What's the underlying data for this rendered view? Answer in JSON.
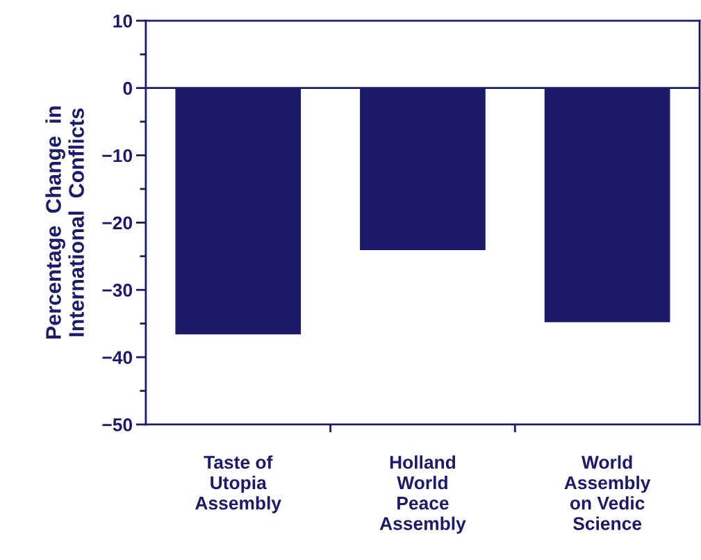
{
  "chart_data": {
    "type": "bar",
    "ylabel": "Percentage  Change  in\nInternational  Conflicts",
    "categories": [
      "Taste of\nUtopia\nAssembly",
      "Holland\nWorld\nPeace\nAssembly",
      "World\nAssembly\non Vedic\nScience"
    ],
    "values": [
      -36.6,
      -24.1,
      -34.8
    ],
    "color": "#1c1a6b",
    "ylim": [
      -50,
      10
    ],
    "yticks": [
      10,
      0,
      -10,
      -20,
      -30,
      -40,
      -50
    ],
    "ref_lines": [
      {
        "axis": "y",
        "value": 0,
        "color": "#1c1a6b"
      }
    ],
    "grid": false,
    "legend": false
  }
}
